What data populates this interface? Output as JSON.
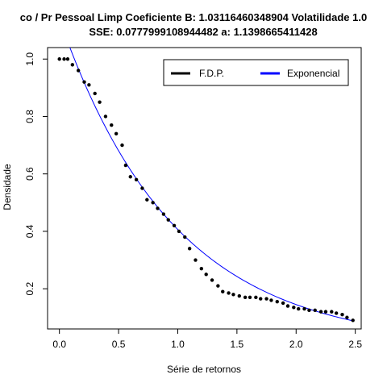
{
  "chart_data": {
    "type": "scatter",
    "title_line1": "co / Pr Pessoal Limp Coeficiente B:  1.03116460348904 Volatilidade 1.0",
    "title_line2": "SSE: 0.0777999108944482  a:  1.1398665411428",
    "xlabel": "Série de retornos",
    "ylabel": "Densidade",
    "xlim": [
      -0.1,
      2.55
    ],
    "ylim": [
      0.06,
      1.04
    ],
    "xticks": [
      0.0,
      0.5,
      1.0,
      1.5,
      2.0,
      2.5
    ],
    "xtick_labels": [
      "0.0",
      "0.5",
      "1.0",
      "1.5",
      "2.0",
      "2.5"
    ],
    "yticks": [
      0.2,
      0.4,
      0.6,
      0.8,
      1.0
    ],
    "ytick_labels": [
      "0.2",
      "0.4",
      "0.6",
      "0.8",
      "1.0"
    ],
    "grid": false,
    "legend_position": "top-right",
    "series": [
      {
        "name": "F.D.P.",
        "kind": "points",
        "color": "#000000",
        "x": [
          0.0,
          0.04,
          0.07,
          0.11,
          0.16,
          0.21,
          0.25,
          0.3,
          0.34,
          0.39,
          0.44,
          0.48,
          0.53,
          0.56,
          0.6,
          0.65,
          0.7,
          0.74,
          0.79,
          0.83,
          0.88,
          0.92,
          0.97,
          1.01,
          1.06,
          1.1,
          1.15,
          1.2,
          1.24,
          1.29,
          1.34,
          1.38,
          1.43,
          1.47,
          1.52,
          1.57,
          1.61,
          1.66,
          1.7,
          1.75,
          1.79,
          1.84,
          1.89,
          1.93,
          1.98,
          2.02,
          2.07,
          2.11,
          2.16,
          2.21,
          2.25,
          2.3,
          2.34,
          2.39,
          2.43,
          2.48
        ],
        "y": [
          1.0,
          1.0,
          1.0,
          0.98,
          0.96,
          0.92,
          0.91,
          0.88,
          0.85,
          0.8,
          0.77,
          0.74,
          0.7,
          0.63,
          0.59,
          0.58,
          0.55,
          0.51,
          0.5,
          0.48,
          0.46,
          0.44,
          0.42,
          0.4,
          0.38,
          0.34,
          0.3,
          0.27,
          0.25,
          0.23,
          0.21,
          0.19,
          0.185,
          0.18,
          0.175,
          0.17,
          0.17,
          0.17,
          0.165,
          0.165,
          0.16,
          0.155,
          0.15,
          0.14,
          0.135,
          0.13,
          0.13,
          0.125,
          0.125,
          0.12,
          0.12,
          0.12,
          0.115,
          0.11,
          0.1,
          0.09
        ]
      },
      {
        "name": "Exponencial",
        "kind": "line",
        "color": "#0000ff",
        "a": 1.1398665411428,
        "b": 1.03116460348904,
        "x_range": [
          0.0,
          2.48
        ]
      }
    ]
  }
}
